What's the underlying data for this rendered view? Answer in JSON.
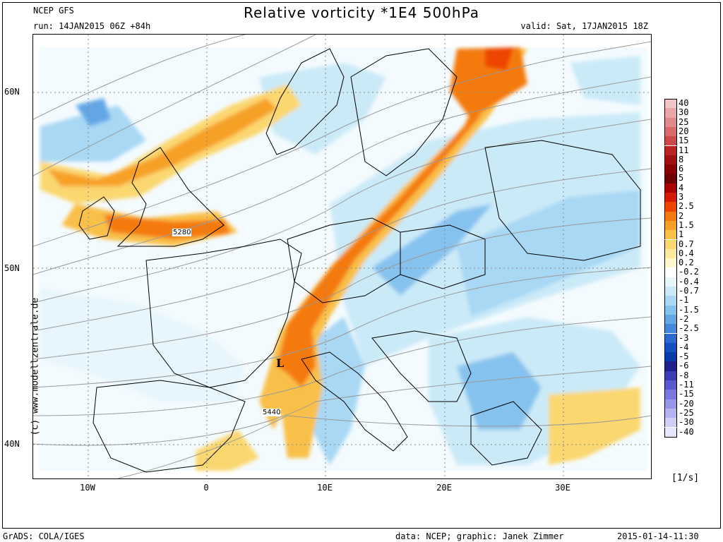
{
  "header": {
    "model": "NCEP GFS",
    "run": "run: 14JAN2015 06Z +84h",
    "title": "Relative vorticity *1E4 500hPa",
    "valid": "valid: Sat, 17JAN2015 18Z"
  },
  "map": {
    "lat_labels": [
      "60N",
      "50N",
      "40N"
    ],
    "lon_labels": [
      "10W",
      "0",
      "10E",
      "20E",
      "30E"
    ],
    "contour_labels": [
      "5280",
      "5440"
    ],
    "low_marker": "L",
    "watermark": "(c) www.modellzentrale.de"
  },
  "colorbar": {
    "units": "[1/s]",
    "levels": [
      {
        "label": "40",
        "color": "#f2c4c4"
      },
      {
        "label": "30",
        "color": "#eaa6a6"
      },
      {
        "label": "25",
        "color": "#e28a8a"
      },
      {
        "label": "20",
        "color": "#d86a6a"
      },
      {
        "label": "15",
        "color": "#cc4a4a"
      },
      {
        "label": "11",
        "color": "#bb2222"
      },
      {
        "label": "8",
        "color": "#a01010"
      },
      {
        "label": "6",
        "color": "#880000"
      },
      {
        "label": "5",
        "color": "#700000"
      },
      {
        "label": "4",
        "color": "#aa0000"
      },
      {
        "label": "3",
        "color": "#d41a00"
      },
      {
        "label": "2.5",
        "color": "#ee4400"
      },
      {
        "label": "2",
        "color": "#f47a10"
      },
      {
        "label": "1.5",
        "color": "#f7a028"
      },
      {
        "label": "1",
        "color": "#f9c048"
      },
      {
        "label": "0.7",
        "color": "#fbd770"
      },
      {
        "label": "0.4",
        "color": "#fde99a"
      },
      {
        "label": "0.2",
        "color": "#fff6cc"
      },
      {
        "label": "-0.2",
        "color": "#ffffff"
      },
      {
        "label": "-0.4",
        "color": "#e6f6fc"
      },
      {
        "label": "-0.7",
        "color": "#cbeaf8"
      },
      {
        "label": "-1",
        "color": "#a8d8f4"
      },
      {
        "label": "-1.5",
        "color": "#86c2ee"
      },
      {
        "label": "-2",
        "color": "#62a6e6"
      },
      {
        "label": "-2.5",
        "color": "#4488dc"
      },
      {
        "label": "-3",
        "color": "#2a6ad0"
      },
      {
        "label": "-4",
        "color": "#1450c0"
      },
      {
        "label": "-5",
        "color": "#0a3aa8"
      },
      {
        "label": "-6",
        "color": "#20208a"
      },
      {
        "label": "-8",
        "color": "#3c3cb4"
      },
      {
        "label": "-11",
        "color": "#5a5ad0"
      },
      {
        "label": "-15",
        "color": "#7878e0"
      },
      {
        "label": "-20",
        "color": "#9696ea"
      },
      {
        "label": "-25",
        "color": "#b4b4f2"
      },
      {
        "label": "-30",
        "color": "#cfcff8"
      },
      {
        "label": "-40",
        "color": "#e6e6fc"
      }
    ]
  },
  "footer": {
    "software": "GrADS: COLA/IGES",
    "credit": "data: NCEP; graphic: Janek Zimmer",
    "timestamp": "2015-01-14-11:30"
  }
}
